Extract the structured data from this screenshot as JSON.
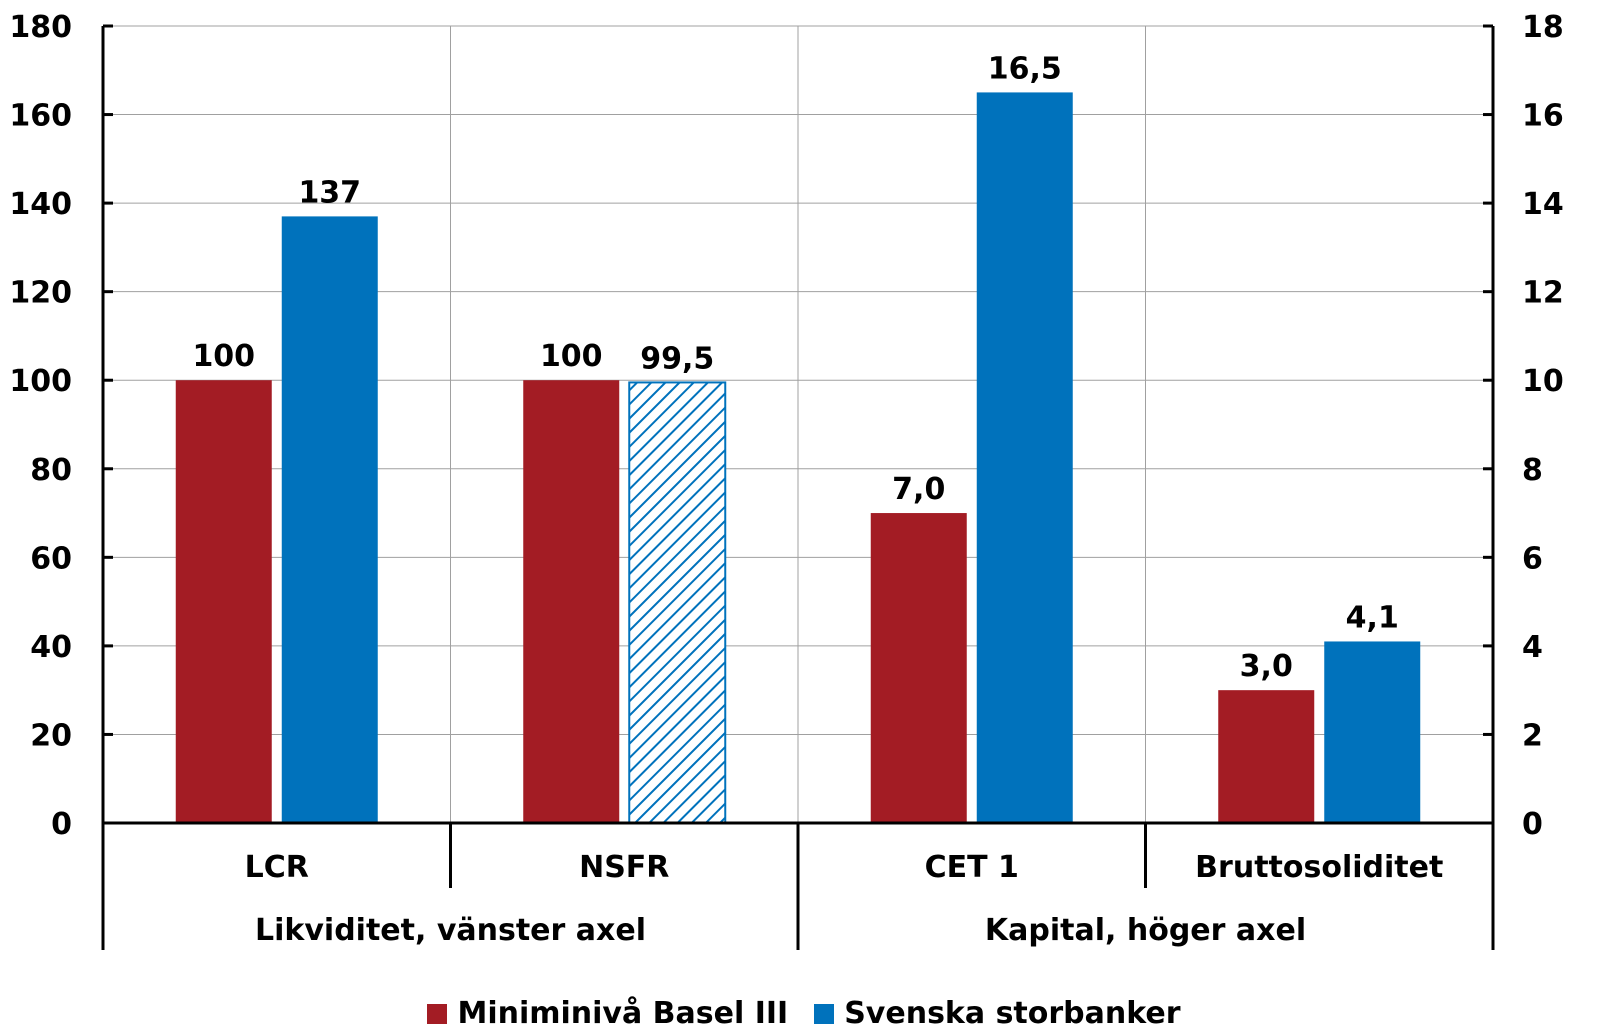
{
  "chart_data": {
    "type": "bar",
    "colors": {
      "minimum": "#a31c24",
      "banks": "#0072bc",
      "axis": "#000000",
      "grid": "#a0a0a0"
    },
    "left_axis": {
      "ylim": [
        0,
        180
      ],
      "ticks": [
        "0",
        "20",
        "40",
        "60",
        "80",
        "100",
        "120",
        "140",
        "160",
        "180"
      ]
    },
    "right_axis": {
      "ylim": [
        0,
        18
      ],
      "ticks": [
        "0",
        "2",
        "4",
        "6",
        "8",
        "10",
        "12",
        "14",
        "16",
        "18"
      ]
    },
    "categories": [
      {
        "label": "LCR",
        "axis": "left"
      },
      {
        "label": "NSFR",
        "axis": "left"
      },
      {
        "label": "CET 1",
        "axis": "right"
      },
      {
        "label": "Bruttosoliditet",
        "axis": "right"
      }
    ],
    "groups": [
      {
        "label": "Likviditet, vänster axel"
      },
      {
        "label": "Kapital, höger axel"
      }
    ],
    "series": [
      {
        "name": "Miniminivå Basel III",
        "values": [
          100,
          100,
          7.0,
          3.0
        ],
        "labels": [
          "100",
          "100",
          "7,0",
          "3,0"
        ],
        "hatched": [
          false,
          false,
          false,
          false
        ]
      },
      {
        "name": "Svenska storbanker",
        "values": [
          137,
          99.5,
          16.5,
          4.1
        ],
        "labels": [
          "137",
          "99,5",
          "16,5",
          "4,1"
        ],
        "hatched": [
          false,
          true,
          false,
          false
        ]
      }
    ],
    "grid": true,
    "legend_position": "bottom"
  }
}
